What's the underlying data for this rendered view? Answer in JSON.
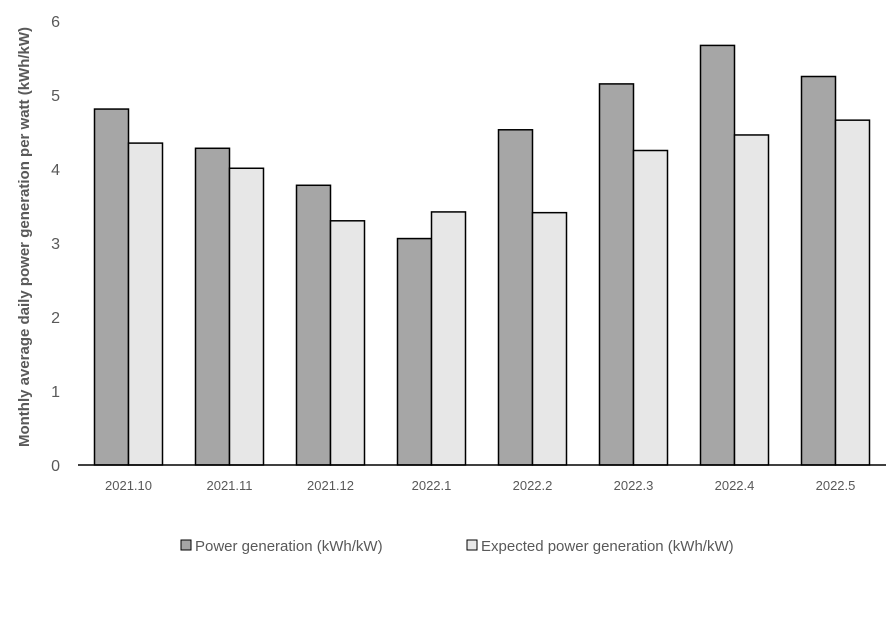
{
  "chart_data": {
    "type": "bar",
    "title": "",
    "xlabel": "",
    "ylabel": "Monthly average daily power generation per watt (kWh/kW)",
    "categories": [
      "2021.10",
      "2021.11",
      "2021.12",
      "2022.1",
      "2022.2",
      "2022.3",
      "2022.4",
      "2022.5"
    ],
    "series": [
      {
        "name": "Power generation (kWh/kW)",
        "color": "#a6a6a6",
        "values": [
          4.81,
          4.28,
          3.78,
          3.06,
          4.53,
          5.15,
          5.67,
          5.25
        ]
      },
      {
        "name": "Expected power generation (kWh/kW)",
        "color": "#e7e7e7",
        "values": [
          4.35,
          4.01,
          3.3,
          3.42,
          3.41,
          4.25,
          4.46,
          4.66
        ]
      }
    ],
    "ylim": [
      0,
      6
    ],
    "yticks": [
      "0",
      "1",
      "2",
      "3",
      "4",
      "5",
      "6"
    ],
    "grid": false,
    "legend_position": "bottom"
  }
}
